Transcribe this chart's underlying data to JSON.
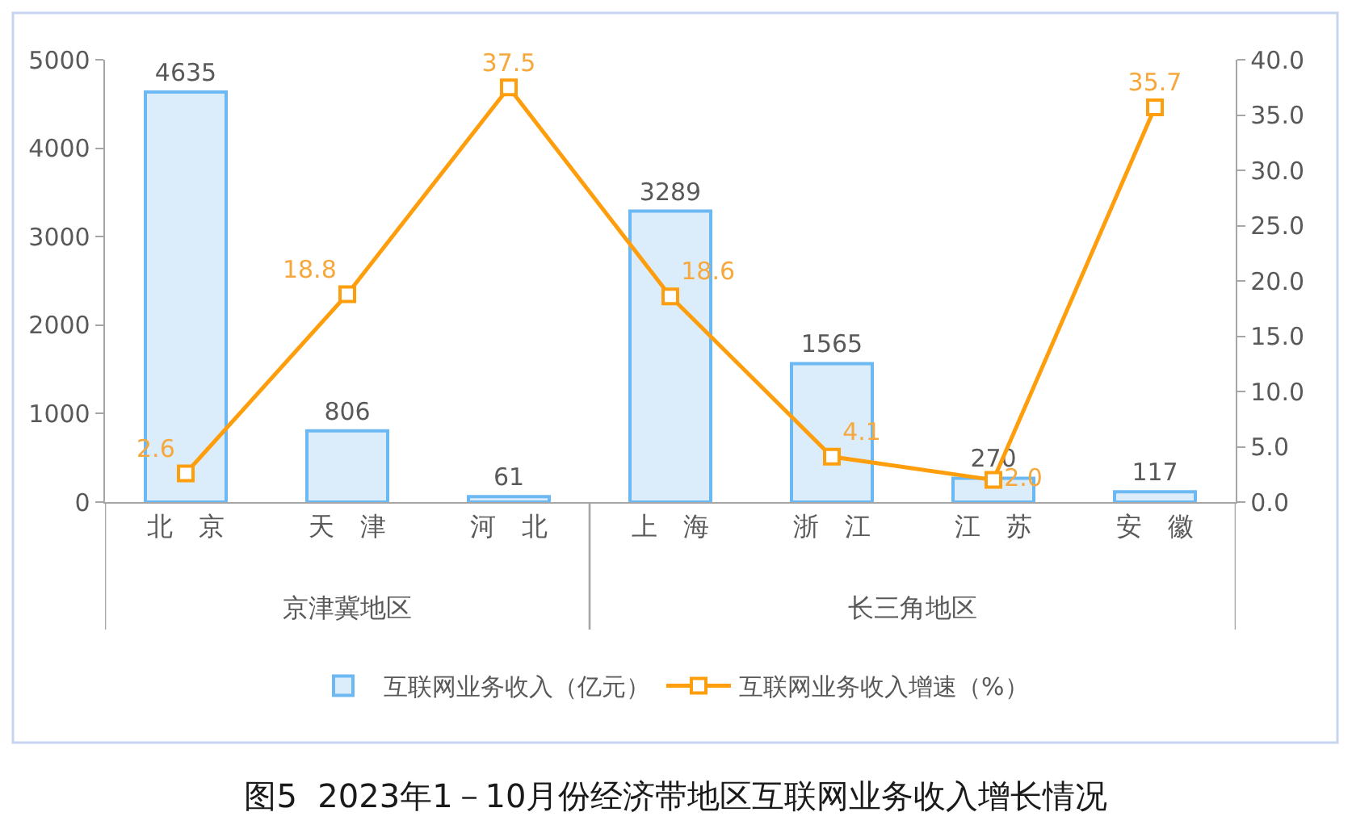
{
  "chart_data": {
    "type": "bar",
    "title": "图5  2023年1－10月份经济带地区互联网业务收入增长情况",
    "categories": [
      "北　京",
      "天　津",
      "河　北",
      "上　海",
      "浙　江",
      "江　苏",
      "安　徽"
    ],
    "series": [
      {
        "name": "互联网业务收入（亿元）",
        "color": "#dbecfa",
        "values": [
          4635,
          806,
          61,
          3289,
          1565,
          270,
          117
        ],
        "value_labels": [
          "4635",
          "806",
          "61",
          "3289",
          "1565",
          "270",
          "117"
        ]
      },
      {
        "name": "互联网业务收入增速（%）",
        "type": "line",
        "axis": "y2",
        "color": "#ff9e0d",
        "values": [
          2.6,
          18.8,
          37.5,
          18.6,
          4.1,
          2.0,
          35.7
        ],
        "value_labels": [
          "2.6",
          "18.8",
          "37.5",
          "18.6",
          "4.1",
          "2.0",
          "35.7"
        ]
      }
    ],
    "ylim": [
      0,
      5000
    ],
    "yticks": [
      0,
      1000,
      2000,
      3000,
      4000,
      5000
    ],
    "y2lim": [
      0,
      40
    ],
    "y2ticks": [
      {
        "value": 0,
        "label": "0.0"
      },
      {
        "value": 5,
        "label": "5.0"
      },
      {
        "value": 10,
        "label": "10.0"
      },
      {
        "value": 15,
        "label": "15.0"
      },
      {
        "value": 20,
        "label": "20.0"
      },
      {
        "value": 25,
        "label": "25.0"
      },
      {
        "value": 30,
        "label": "30.0"
      },
      {
        "value": 35,
        "label": "35.0"
      },
      {
        "value": 40,
        "label": "40.0"
      }
    ],
    "annotations": [
      "京津冀地区",
      "长三角地区"
    ],
    "marker": "square",
    "line_style": "solid",
    "grid": false,
    "legend": "bottom"
  }
}
